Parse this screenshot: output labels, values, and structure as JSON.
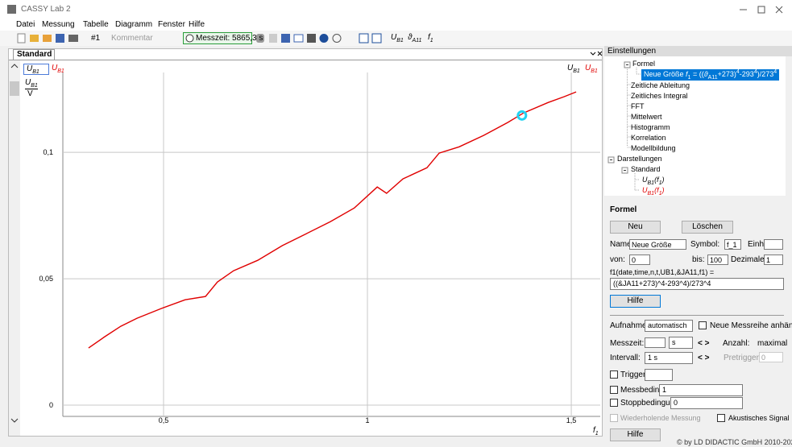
{
  "window": {
    "title": "CASSY Lab 2"
  },
  "menu": [
    "Datei",
    "Messung",
    "Tabelle",
    "Diagramm",
    "Fenster",
    "Hilfe"
  ],
  "toolbar": {
    "series_selector": "#1",
    "comment": "Kommentar",
    "measuring_time": "Messzeit: 5865,3 s",
    "channels": [
      [
        "U",
        "B1"
      ],
      [
        "ϑ",
        "A11"
      ],
      [
        "f",
        "1"
      ]
    ]
  },
  "tab": "Standard",
  "legend_left": [
    [
      "U",
      "B1"
    ],
    [
      "U",
      "B1"
    ]
  ],
  "legend_right": [
    [
      "U",
      "B1"
    ],
    [
      "U",
      "B1"
    ]
  ],
  "chart_data": {
    "type": "line",
    "ylabel": [
      "U",
      "B1",
      "V"
    ],
    "xlabel": [
      "f",
      "1"
    ],
    "x": [
      0.316,
      0.356,
      0.395,
      0.435,
      0.494,
      0.553,
      0.603,
      0.632,
      0.672,
      0.731,
      0.791,
      0.85,
      0.909,
      0.968,
      1.024,
      1.047,
      1.087,
      1.146,
      1.176,
      1.225,
      1.285,
      1.344,
      1.383,
      1.443,
      1.482,
      1.512
    ],
    "series": [
      {
        "color": "#e00000",
        "values": [
          0.0226,
          0.0271,
          0.0312,
          0.0344,
          0.0382,
          0.0417,
          0.043,
          0.0487,
          0.0532,
          0.0573,
          0.0631,
          0.0678,
          0.0726,
          0.078,
          0.0863,
          0.0838,
          0.0895,
          0.0939,
          0.0997,
          0.1022,
          0.1067,
          0.1118,
          0.1156,
          0.1197,
          0.122,
          0.1239
        ]
      }
    ],
    "cursor": {
      "x": 1.379,
      "y": 0.1146,
      "color": "#22d3f2"
    },
    "xlim": [
      0.253,
      1.571
    ],
    "ylim": [
      -0.0054,
      0.13
    ],
    "xticks": [
      {
        "value": 0.5,
        "label": "0,5"
      },
      1,
      {
        "value": 1.5,
        "label": "1,5"
      }
    ],
    "yticks": [
      0,
      {
        "value": 0.05,
        "label": "0,05"
      },
      {
        "value": 0.1,
        "label": "0,1"
      }
    ],
    "grid": true
  },
  "settings": {
    "title": "Einstellungen",
    "formula_node": "Formel",
    "formula_item": [
      "Neue Größe ",
      "f",
      "1",
      " = ((",
      "ϑ",
      "A11",
      "+273)",
      "4",
      "-293",
      "4",
      ")/273",
      "4"
    ],
    "calc_items": [
      "Zeitliche Ableitung",
      "Zeitliches Integral",
      "FFT",
      "Mittelwert",
      "Histogramm",
      "Korrelation",
      "Modellbildung"
    ],
    "displays": "Darstellungen",
    "display_standard": "Standard",
    "display_items": [
      [
        "U",
        "B1",
        "(",
        "f",
        "1",
        ")"
      ],
      [
        "U",
        "B1",
        "(",
        "f",
        "1",
        ")"
      ]
    ]
  },
  "formula_panel": {
    "heading": "Formel",
    "new": "Neu",
    "delete": "Löschen",
    "name_label": "Name:",
    "name_value": "Neue Größe",
    "symbol_label": "Symbol:",
    "symbol_value": "f_1",
    "unit_label": "Einheit:",
    "from_label": "von:",
    "from_value": "0",
    "to_label": "bis:",
    "to_value": "100",
    "decimals_label": "Dezimalen:",
    "decimals_value": "1",
    "formula_vars": "f1(date,time,n,t,UB1,&JA11,f1) =",
    "formula": "((&JA11+273)^4-293^4)/273^4",
    "help": "Hilfe",
    "recording_label": "Aufnahme:",
    "recording_value": "automatisch",
    "append": "Neue Messreihe anhängen",
    "time_label": "Messzeit:",
    "time_unit": "s",
    "arrows": "<  >",
    "count_label": "Anzahl:",
    "count_value": "maximal",
    "interval_label": "Intervall:",
    "interval_value": "1 s",
    "pretrigger_label": "Pretrigger:",
    "pretrigger_value": "0",
    "trigger": "Trigger:",
    "meas_condition": "Messbedingung:",
    "meas_condition_value": "1",
    "stop_condition": "Stoppbedingung:",
    "stop_condition_value": "0",
    "repeat": "Wiederholende Messung",
    "acoustic": "Akustisches Signal",
    "help2": "Hilfe"
  },
  "footer": "© by LD DIDACTIC GmbH  2010-2020"
}
